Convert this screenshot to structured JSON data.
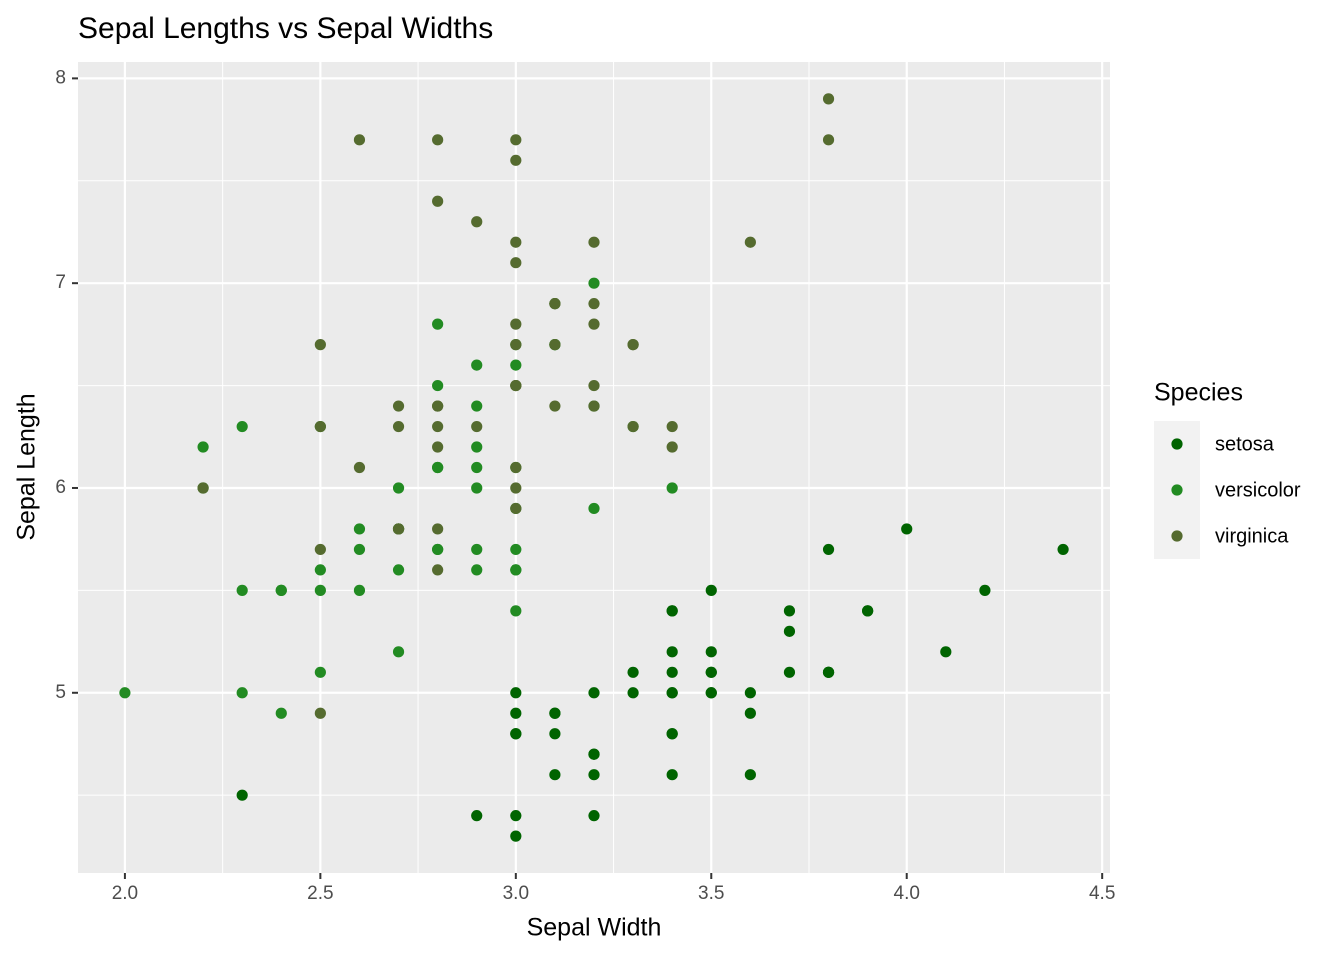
{
  "chart_data": {
    "type": "scatter",
    "title": "Sepal Lengths vs Sepal Widths",
    "x_label": "Sepal Width",
    "y_label": "Sepal Length",
    "legend_title": "Species",
    "legend_position": "right",
    "grid": true,
    "xlim": [
      1.88,
      4.52
    ],
    "xticks": [
      {
        "value": 2.0,
        "label": "2.0"
      },
      2.5,
      {
        "value": 3.0,
        "label": "3.0"
      },
      3.5,
      {
        "value": 4.0,
        "label": "4.0"
      },
      4.5
    ],
    "ylim": [
      4.12,
      8.08
    ],
    "yticks": [
      5,
      6,
      7,
      8
    ],
    "series": [
      {
        "name": "setosa",
        "color": "#006400",
        "x": [
          3.5,
          3.0,
          3.2,
          3.1,
          3.6,
          3.9,
          3.4,
          3.4,
          2.9,
          3.1,
          3.7,
          3.4,
          3.0,
          3.0,
          4.0,
          4.4,
          3.9,
          3.5,
          3.8,
          3.8,
          3.4,
          3.7,
          3.6,
          3.3,
          3.4,
          3.0,
          3.4,
          3.5,
          3.4,
          3.2,
          3.1,
          3.4,
          4.1,
          4.2,
          3.1,
          3.2,
          3.5,
          3.6,
          3.0,
          3.4,
          3.5,
          2.3,
          3.2,
          3.5,
          3.8,
          3.0,
          3.8,
          3.2,
          3.7,
          3.3
        ],
        "values": [
          5.1,
          4.9,
          4.7,
          4.6,
          5.0,
          5.4,
          4.6,
          5.0,
          4.4,
          4.9,
          5.4,
          4.8,
          4.8,
          4.3,
          5.8,
          5.7,
          5.4,
          5.1,
          5.7,
          5.1,
          5.4,
          5.1,
          4.6,
          5.1,
          4.8,
          5.0,
          5.0,
          5.2,
          5.2,
          4.7,
          4.8,
          5.4,
          5.2,
          5.5,
          4.9,
          5.0,
          5.5,
          4.9,
          4.4,
          5.1,
          5.0,
          4.5,
          4.4,
          5.0,
          5.1,
          4.8,
          5.1,
          4.6,
          5.3,
          5.0
        ]
      },
      {
        "name": "versicolor",
        "color": "#228B22",
        "x": [
          3.2,
          3.2,
          3.1,
          2.3,
          2.8,
          2.8,
          3.3,
          2.4,
          2.9,
          2.7,
          2.0,
          3.0,
          2.2,
          2.9,
          2.9,
          3.1,
          3.0,
          2.7,
          2.2,
          2.5,
          3.2,
          2.8,
          2.5,
          2.8,
          2.9,
          3.0,
          2.8,
          3.0,
          2.9,
          2.6,
          2.4,
          2.4,
          2.7,
          2.7,
          3.0,
          3.4,
          3.1,
          2.3,
          3.0,
          2.5,
          2.6,
          3.0,
          2.6,
          2.3,
          2.7,
          3.0,
          2.9,
          2.9,
          2.5,
          2.8
        ],
        "values": [
          7.0,
          6.4,
          6.9,
          5.5,
          6.5,
          5.7,
          6.3,
          4.9,
          6.6,
          5.2,
          5.0,
          5.9,
          6.0,
          6.1,
          5.6,
          6.7,
          5.6,
          5.8,
          6.2,
          5.6,
          5.9,
          6.1,
          6.3,
          6.1,
          6.4,
          6.6,
          6.8,
          6.7,
          6.0,
          5.7,
          5.5,
          5.5,
          5.8,
          6.0,
          5.4,
          6.0,
          6.7,
          6.3,
          5.6,
          5.5,
          5.5,
          6.1,
          5.8,
          5.0,
          5.6,
          5.7,
          5.7,
          6.2,
          5.1,
          5.7
        ]
      },
      {
        "name": "virginica",
        "color": "#556B2F",
        "x": [
          3.3,
          2.7,
          3.0,
          2.9,
          3.0,
          3.0,
          2.5,
          2.9,
          2.5,
          3.6,
          3.2,
          2.7,
          3.0,
          2.5,
          2.8,
          3.2,
          3.0,
          3.8,
          2.6,
          2.2,
          3.2,
          2.8,
          2.8,
          2.7,
          3.3,
          3.2,
          2.8,
          3.0,
          2.8,
          3.0,
          2.8,
          3.8,
          2.8,
          2.8,
          2.6,
          3.0,
          3.4,
          3.1,
          3.0,
          3.1,
          3.1,
          3.1,
          2.7,
          3.2,
          3.3,
          3.0,
          2.5,
          3.0,
          3.4,
          3.0
        ],
        "values": [
          6.3,
          5.8,
          7.1,
          6.3,
          6.5,
          7.6,
          4.9,
          7.3,
          6.7,
          7.2,
          6.5,
          6.4,
          6.8,
          5.7,
          5.8,
          6.4,
          6.5,
          7.7,
          7.7,
          6.0,
          6.9,
          5.6,
          7.7,
          6.3,
          6.7,
          7.2,
          6.2,
          6.1,
          6.4,
          7.2,
          7.4,
          7.9,
          6.4,
          6.3,
          6.1,
          7.7,
          6.3,
          6.4,
          6.0,
          6.9,
          6.7,
          6.9,
          5.8,
          6.8,
          6.7,
          6.7,
          6.3,
          6.5,
          6.2,
          5.9
        ]
      }
    ]
  }
}
